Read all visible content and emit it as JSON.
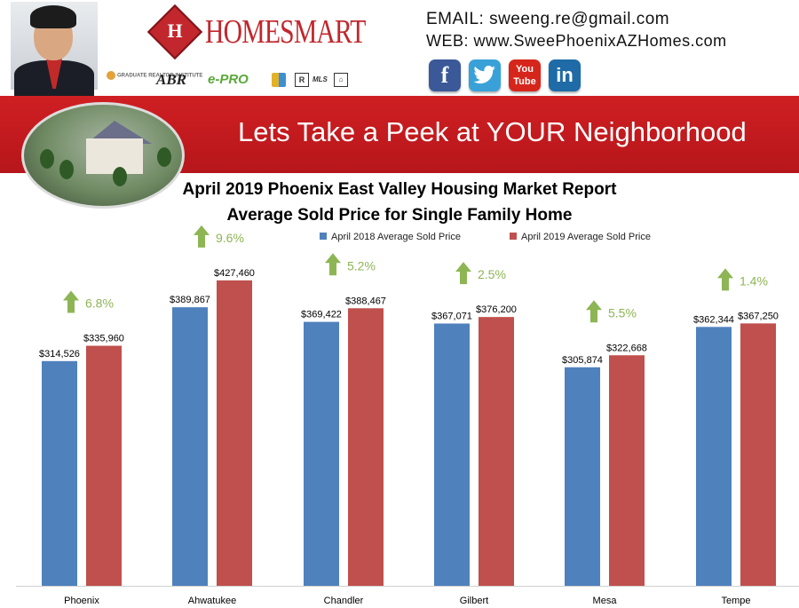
{
  "header": {
    "brand_name": "HOMESMART",
    "brand_mark": "H",
    "email": "EMAIL: sweeng.re@gmail.com",
    "web": "WEB: www.SweePhoenixAZHomes.com",
    "badges": [
      "GRADUATE REALTOR INSTITUTE",
      "ABR",
      "e-PRO",
      "MLS",
      "R"
    ],
    "social": [
      {
        "name": "facebook-icon",
        "glyph": "f",
        "color": "#3b5998"
      },
      {
        "name": "twitter-icon",
        "glyph": "🐦",
        "color": "#3aa1d8"
      },
      {
        "name": "youtube-icon",
        "glyph": "You Tube",
        "color": "#d6261b"
      },
      {
        "name": "linkedin-icon",
        "glyph": "in",
        "color": "#1f6ba7"
      }
    ]
  },
  "banner": {
    "text": "Lets Take a Peek at YOUR Neighborhood"
  },
  "colors": {
    "banner_red": "#c41c20",
    "series_2018": "#4f81bd",
    "series_2019": "#c0504d",
    "arrow_green": "#8db554"
  },
  "chart_data": {
    "type": "bar",
    "title": "April 2019 Phoenix East Valley Housing Market Report",
    "subtitle": "Average Sold Price for Single Family Home",
    "legend_position": "top",
    "categories": [
      "Phoenix",
      "Ahwatukee",
      "Chandler",
      "Gilbert",
      "Mesa",
      "Tempe"
    ],
    "series": [
      {
        "name": "April 2018 Average Sold Price",
        "values": [
          314526,
          389867,
          369422,
          367071,
          305874,
          362344
        ],
        "labels": [
          "$314,526",
          "$389,867",
          "$369,422",
          "$367,071",
          "$305,874",
          "$362,344"
        ]
      },
      {
        "name": "April 2019 Average Sold Price",
        "values": [
          335960,
          427460,
          388467,
          376200,
          322668,
          367250
        ],
        "labels": [
          "$335,960",
          "$427,460",
          "$388,467",
          "$376,200",
          "$322,668",
          "$367,250"
        ]
      }
    ],
    "annotations": [
      "6.8%",
      "9.6%",
      "5.2%",
      "2.5%",
      "5.5%",
      "1.4%"
    ],
    "ylim": [
      0,
      450000
    ],
    "grid": false
  }
}
